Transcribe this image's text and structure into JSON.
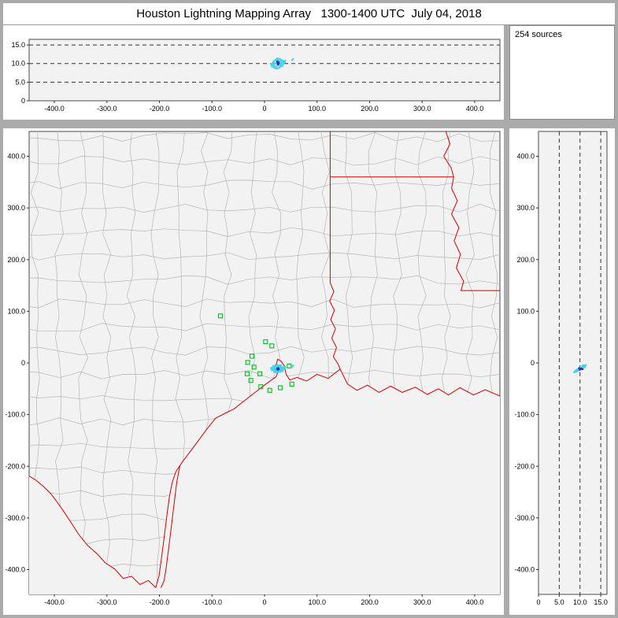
{
  "title": "Houston Lightning Mapping Array   1300-1400 UTC  July 04, 2018",
  "sources_label": "254 sources",
  "colors": {
    "panel_bg": "#f2f2f2",
    "frame": "#4a4a4a",
    "chrome": "#ababab",
    "dashed": "#333333",
    "county": "#b6b6b6",
    "state_border": "#d40000",
    "station": "#00c020",
    "source": "#45d4e6",
    "source_core": "#2b31c8",
    "text": "#000000"
  },
  "chart_data": {
    "type": "scatter",
    "title": "Houston Lightning Mapping Array 1300-1400 UTC July 04, 2018",
    "source_count": 254,
    "units": "km",
    "panels": [
      {
        "id": "alt-vs-east",
        "xlim": [
          -448,
          448
        ],
        "ylim": [
          0,
          16.5
        ],
        "xticks": [
          -400,
          -300,
          -200,
          -100,
          0,
          100,
          200,
          300,
          400
        ],
        "xtick_labels": [
          "-400.0",
          "-300.0",
          "-200.0",
          "-100.0",
          "0",
          "100.0",
          "200.0",
          "300.0",
          "400.0"
        ],
        "yticks": [
          15,
          10,
          5,
          0
        ],
        "ytick_labels": [
          "15.0",
          "10.0",
          "5.0",
          "0"
        ],
        "dashed_y_values": [
          5,
          10,
          15
        ]
      },
      {
        "id": "plan-view",
        "xlim": [
          -448,
          448
        ],
        "ylim": [
          -448,
          448
        ],
        "xticks": [
          -400,
          -300,
          -200,
          -100,
          0,
          100,
          200,
          300,
          400
        ],
        "xtick_labels": [
          "-400.0",
          "-300.0",
          "-200.0",
          "-100.0",
          "0",
          "100.0",
          "200.0",
          "300.0",
          "400.0"
        ],
        "yticks": [
          400,
          300,
          200,
          100,
          0,
          -100,
          -200,
          -300,
          -400
        ],
        "ytick_labels": [
          "400.0",
          "300.0",
          "200.0",
          "100.0",
          "0",
          "-100.0",
          "-200.0",
          "-300.0",
          "-400.0"
        ]
      },
      {
        "id": "alt-vs-north",
        "xlim": [
          0,
          16.5
        ],
        "ylim": [
          -448,
          448
        ],
        "xticks": [
          0,
          5,
          10,
          15
        ],
        "xtick_labels": [
          "0",
          "5.0",
          "10.0",
          "15.0"
        ],
        "yticks": [
          400,
          300,
          200,
          100,
          0,
          -100,
          -200,
          -300,
          -400
        ],
        "ytick_labels": [
          "400.0",
          "300.0",
          "200.0",
          "100.0",
          "0",
          "-100.0",
          "-200.0",
          "-300.0",
          "-400.0"
        ],
        "dashed_x_values": [
          5,
          10,
          15
        ]
      }
    ],
    "points_east_north_altkm": [
      [
        13.2,
        -10.8,
        9.7
      ],
      [
        14.5,
        -12.6,
        9.3
      ],
      [
        15.1,
        -8.9,
        10.1
      ],
      [
        15.8,
        -11.7,
        9.8
      ],
      [
        16.4,
        -14.2,
        9.1
      ],
      [
        17.0,
        -9.6,
        10.4
      ],
      [
        17.6,
        -12.9,
        9.6
      ],
      [
        18.1,
        -7.8,
        10.7
      ],
      [
        18.7,
        -15.1,
        8.9
      ],
      [
        19.2,
        -10.9,
        10.2
      ],
      [
        19.8,
        -13.7,
        9.4
      ],
      [
        20.3,
        -8.4,
        10.9
      ],
      [
        20.9,
        -11.9,
        10.0
      ],
      [
        21.4,
        -16.0,
        8.8
      ],
      [
        21.9,
        -9.2,
        11.0
      ],
      [
        22.4,
        -12.4,
        10.1
      ],
      [
        22.9,
        -14.9,
        9.2
      ],
      [
        23.4,
        -7.3,
        11.2
      ],
      [
        23.9,
        -10.6,
        10.5
      ],
      [
        24.4,
        -13.3,
        9.7
      ],
      [
        24.9,
        -16.6,
        8.7
      ],
      [
        25.4,
        -8.7,
        11.1
      ],
      [
        25.9,
        -11.3,
        10.3
      ],
      [
        26.4,
        -14.1,
        9.5
      ],
      [
        26.9,
        -6.9,
        11.3
      ],
      [
        27.4,
        -10.0,
        10.6
      ],
      [
        27.9,
        -12.8,
        9.9
      ],
      [
        28.4,
        -15.6,
        9.0
      ],
      [
        28.9,
        -8.2,
        11.0
      ],
      [
        29.4,
        -11.0,
        10.4
      ],
      [
        29.9,
        -13.9,
        9.6
      ],
      [
        30.4,
        -6.5,
        11.2
      ],
      [
        30.9,
        -9.9,
        10.7
      ],
      [
        31.4,
        -12.5,
        10.0
      ],
      [
        31.9,
        -15.0,
        9.3
      ],
      [
        32.5,
        -8.0,
        10.9
      ],
      [
        33.1,
        -11.2,
        10.3
      ],
      [
        33.7,
        -13.6,
        9.7
      ],
      [
        34.3,
        -7.6,
        10.8
      ],
      [
        34.9,
        -10.4,
        10.5
      ],
      [
        35.6,
        -12.7,
        9.9
      ],
      [
        36.3,
        -9.1,
        10.6
      ],
      [
        37.1,
        -11.5,
        10.2
      ],
      [
        37.9,
        -8.6,
        10.7
      ],
      [
        38.8,
        -10.7,
        10.3
      ],
      [
        39.6,
        -7.9,
        10.8
      ],
      [
        12.4,
        -9.7,
        9.9
      ],
      [
        13.8,
        -13.5,
        9.2
      ],
      [
        16.9,
        -5.8,
        10.5
      ],
      [
        20.6,
        -4.7,
        11.0
      ],
      [
        24.2,
        -4.1,
        11.4
      ],
      [
        27.8,
        -4.9,
        11.1
      ],
      [
        31.2,
        -4.4,
        10.8
      ],
      [
        18.4,
        -17.2,
        8.8
      ],
      [
        22.1,
        -18.3,
        8.6
      ],
      [
        26.1,
        -17.8,
        8.8
      ],
      [
        30.1,
        -17.0,
        9.1
      ],
      [
        34.6,
        -15.9,
        9.4
      ],
      [
        52.6,
        -6.8,
        10.9
      ],
      [
        54.3,
        -5.4,
        11.2
      ]
    ],
    "core_points_east_north_altkm": [
      [
        24.7,
        -11.1,
        10.2
      ],
      [
        25.6,
        -12.3,
        10.0
      ],
      [
        26.3,
        -11.0,
        10.4
      ],
      [
        25.1,
        -13.0,
        9.9
      ],
      [
        26.9,
        -12.0,
        10.1
      ],
      [
        24.1,
        -12.1,
        10.6
      ],
      [
        25.9,
        -10.1,
        9.8
      ],
      [
        25.3,
        -11.6,
        10.3
      ]
    ]
  },
  "map": {
    "county_mesh": {
      "spacing_km": 46,
      "jitter_km": 18,
      "seed": 20180704
    },
    "state_lines": [
      [
        [
          125,
          448
        ],
        [
          125,
          360
        ],
        [
          360,
          360
        ]
      ],
      [
        [
          345,
          448
        ],
        [
          353,
          424
        ],
        [
          341,
          400
        ],
        [
          355,
          378
        ],
        [
          360,
          360
        ],
        [
          356,
          338
        ],
        [
          367,
          314
        ],
        [
          356,
          288
        ],
        [
          370,
          262
        ],
        [
          361,
          236
        ],
        [
          373,
          210
        ],
        [
          365,
          184
        ],
        [
          379,
          158
        ],
        [
          374,
          140
        ],
        [
          448,
          140
        ]
      ],
      [
        [
          125,
          360
        ],
        [
          125,
          155
        ],
        [
          132,
          138
        ],
        [
          124,
          120
        ],
        [
          133,
          102
        ],
        [
          126,
          84
        ],
        [
          135,
          66
        ],
        [
          128,
          48
        ],
        [
          137,
          30
        ],
        [
          131,
          12
        ],
        [
          140,
          -2
        ],
        [
          144,
          -12
        ]
      ]
    ],
    "coastline": [
      [
        448,
        -64
      ],
      [
        420,
        -52
      ],
      [
        398,
        -62
      ],
      [
        372,
        -48
      ],
      [
        350,
        -62
      ],
      [
        331,
        -50
      ],
      [
        310,
        -61
      ],
      [
        287,
        -47
      ],
      [
        262,
        -57
      ],
      [
        240,
        -45
      ],
      [
        218,
        -57
      ],
      [
        196,
        -43
      ],
      [
        176,
        -53
      ],
      [
        158,
        -41
      ],
      [
        144,
        -12
      ],
      [
        121,
        -30
      ],
      [
        100,
        -22
      ],
      [
        80,
        -35
      ],
      [
        62,
        -28
      ],
      [
        48,
        -33
      ],
      [
        41,
        -22
      ],
      [
        38,
        -6
      ],
      [
        31,
        4
      ],
      [
        25,
        7
      ],
      [
        22,
        -4
      ],
      [
        26,
        -16
      ],
      [
        22,
        -27
      ],
      [
        12,
        -34
      ],
      [
        0,
        -43
      ],
      [
        -18,
        -57
      ],
      [
        -38,
        -73
      ],
      [
        -58,
        -89
      ],
      [
        -78,
        -99
      ],
      [
        -93,
        -107
      ],
      [
        -109,
        -127
      ],
      [
        -125,
        -149
      ],
      [
        -141,
        -171
      ],
      [
        -156,
        -191
      ],
      [
        -169,
        -211
      ],
      [
        -176,
        -233
      ],
      [
        -181,
        -259
      ],
      [
        -185,
        -289
      ],
      [
        -189,
        -321
      ],
      [
        -193,
        -353
      ],
      [
        -197,
        -385
      ],
      [
        -201,
        -413
      ],
      [
        -207,
        -435
      ]
    ],
    "rio_grande": [
      [
        -207,
        -435
      ],
      [
        -221,
        -421
      ],
      [
        -237,
        -429
      ],
      [
        -253,
        -413
      ],
      [
        -269,
        -417
      ],
      [
        -285,
        -399
      ],
      [
        -303,
        -387
      ],
      [
        -319,
        -369
      ],
      [
        -337,
        -353
      ],
      [
        -353,
        -333
      ],
      [
        -367,
        -311
      ],
      [
        -381,
        -289
      ],
      [
        -395,
        -269
      ],
      [
        -407,
        -253
      ],
      [
        -421,
        -239
      ],
      [
        -435,
        -227
      ],
      [
        -448,
        -219
      ]
    ],
    "barrier_island": [
      [
        -161,
        -199
      ],
      [
        -167,
        -231
      ],
      [
        -171,
        -263
      ],
      [
        -175,
        -297
      ],
      [
        -179,
        -331
      ],
      [
        -183,
        -363
      ],
      [
        -187,
        -395
      ],
      [
        -191,
        -421
      ],
      [
        -197,
        -435
      ]
    ],
    "stations_east_north": [
      [
        -84,
        91
      ],
      [
        2,
        41
      ],
      [
        14,
        33
      ],
      [
        -24,
        13
      ],
      [
        -32,
        1
      ],
      [
        -20,
        -8
      ],
      [
        -33,
        -21
      ],
      [
        -9,
        -21
      ],
      [
        -26,
        -34
      ],
      [
        -7,
        -46
      ],
      [
        10,
        -53
      ],
      [
        30,
        -48
      ],
      [
        52,
        -41
      ],
      [
        47,
        -6
      ]
    ]
  }
}
